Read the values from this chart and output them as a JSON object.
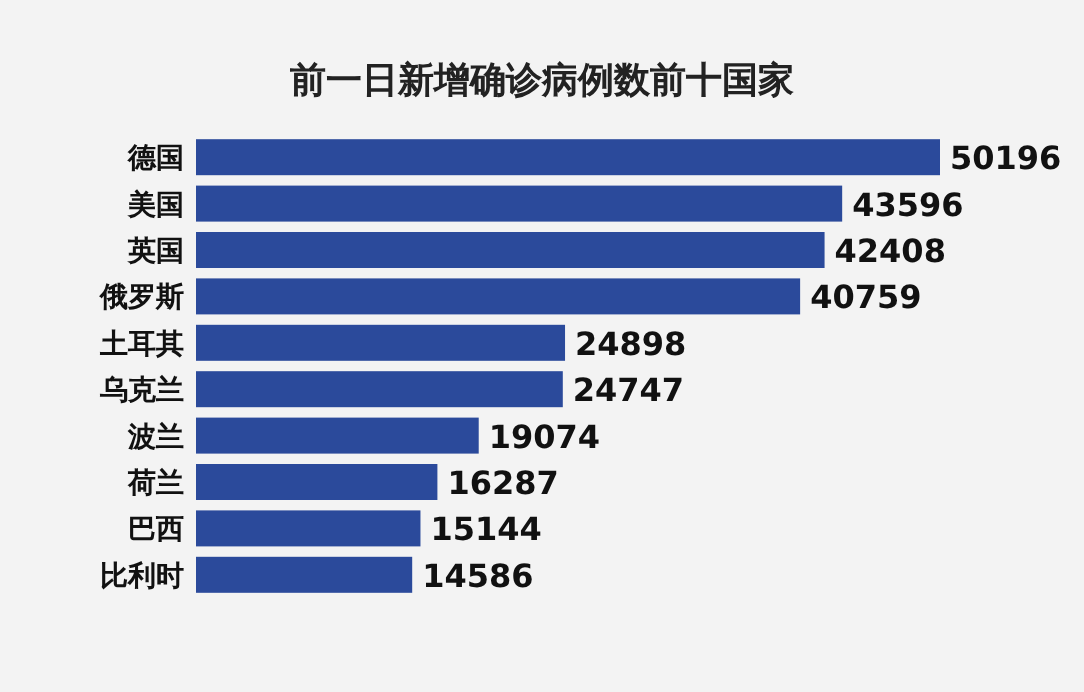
{
  "chart_data": {
    "type": "bar",
    "orientation": "horizontal",
    "title": "前一日新增确诊病例数前十国家",
    "categories": [
      "德国",
      "美国",
      "英国",
      "俄罗斯",
      "土耳其",
      "乌克兰",
      "波兰",
      "荷兰",
      "巴西",
      "比利时"
    ],
    "values": [
      50196,
      43596,
      42408,
      40759,
      24898,
      24747,
      19074,
      16287,
      15144,
      14586
    ],
    "color": "#2b4a9b",
    "data_labels": true
  }
}
